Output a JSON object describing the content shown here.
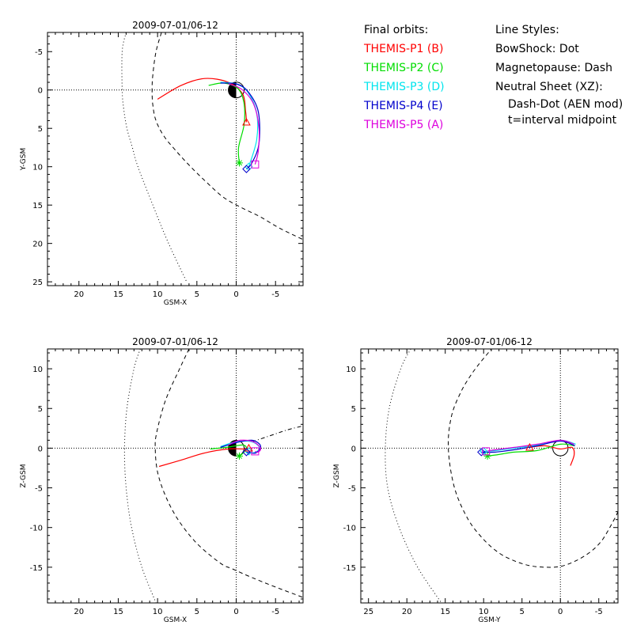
{
  "chart_data": {
    "type": "scatter",
    "panels": [
      {
        "id": "xy",
        "title": "2009-07-01/06-12",
        "xlabel": "GSM-X",
        "ylabel": "Y-GSM",
        "xlim": [
          24,
          -8.5
        ],
        "ylim": [
          -7.5,
          25.5
        ],
        "y_reversed": true,
        "xticks": [
          20,
          15,
          10,
          5,
          0,
          -5
        ],
        "yticks": [
          -5,
          0,
          5,
          10,
          15,
          20,
          25
        ],
        "marker_series": [
          2,
          4,
          0,
          3,
          1
        ],
        "bowshock_label": "BowShock",
        "magnetopause_label": "Magnetopause",
        "bowshock": [
          [
            14.0,
            -7.5
          ],
          [
            14.5,
            -5
          ],
          [
            14.5,
            0
          ],
          [
            14.3,
            2.5
          ],
          [
            13.9,
            5
          ],
          [
            13.2,
            7.5
          ],
          [
            12.5,
            10
          ],
          [
            10.6,
            15
          ],
          [
            8.6,
            20
          ],
          [
            6.3,
            25
          ]
        ],
        "magnetopause": [
          [
            9.5,
            -7.5
          ],
          [
            10.2,
            -5
          ],
          [
            10.6,
            -2
          ],
          [
            10.7,
            0
          ],
          [
            10.6,
            2
          ],
          [
            10.2,
            4
          ],
          [
            9.2,
            6
          ],
          [
            7.6,
            8
          ],
          [
            5.8,
            10
          ],
          [
            3.8,
            12
          ],
          [
            1.6,
            14
          ],
          [
            -0.6,
            15.3
          ],
          [
            -3.0,
            16.5
          ],
          [
            -5.5,
            18.0
          ],
          [
            -8.5,
            19.5
          ]
        ]
      },
      {
        "id": "xz",
        "title": "2009-07-01/06-12",
        "xlabel": "GSM-X",
        "ylabel": "Z-GSM",
        "xlim": [
          24,
          -8.5
        ],
        "ylim": [
          -19.5,
          12.5
        ],
        "y_reversed": false,
        "xticks": [
          20,
          15,
          10,
          5,
          0,
          -5
        ],
        "yticks": [
          10,
          5,
          0,
          -5,
          -10,
          -15
        ],
        "marker_series": [
          2,
          4,
          0,
          3,
          1
        ],
        "bowshock_label": "BowShock",
        "magnetopause_label": "Magnetopause",
        "neutral_sheet_label": "Neutral Sheet",
        "bowshock": [
          [
            12.2,
            12.5
          ],
          [
            13.0,
            10
          ],
          [
            13.9,
            5
          ],
          [
            14.2,
            0
          ],
          [
            14.0,
            -5
          ],
          [
            13.3,
            -10
          ],
          [
            12.0,
            -15
          ],
          [
            10.2,
            -19.5
          ]
        ],
        "magnetopause": [
          [
            6.0,
            12.5
          ],
          [
            7.2,
            10
          ],
          [
            9.0,
            6
          ],
          [
            10.1,
            2
          ],
          [
            10.3,
            0
          ],
          [
            10.0,
            -3
          ],
          [
            9.0,
            -6
          ],
          [
            7.4,
            -9
          ],
          [
            5.0,
            -12
          ],
          [
            2.0,
            -14.5
          ],
          [
            0.5,
            -15.2
          ],
          [
            -2.0,
            -16.3
          ],
          [
            -5.0,
            -17.5
          ],
          [
            -8.5,
            -18.8
          ]
        ],
        "neutral_sheet": [
          [
            -2.0,
            0.8
          ],
          [
            -3.5,
            1.3
          ],
          [
            -5.0,
            1.8
          ],
          [
            -6.5,
            2.3
          ],
          [
            -8.5,
            2.8
          ]
        ]
      },
      {
        "id": "yz",
        "title": "2009-07-01/06-12",
        "xlabel": "GSM-Y",
        "ylabel": "Z-GSM",
        "xlim": [
          26,
          -7.5
        ],
        "ylim": [
          -19.5,
          12.5
        ],
        "y_reversed": false,
        "xticks": [
          25,
          20,
          15,
          10,
          5,
          0,
          -5
        ],
        "yticks": [
          10,
          5,
          0,
          -5,
          -10,
          -15
        ],
        "marker_series": [
          3,
          1,
          0,
          2,
          4
        ],
        "bowshock_label": "BowShock",
        "magnetopause_label": "Magnetopause",
        "bowshock": [
          [
            19.5,
            12.5
          ],
          [
            20.8,
            10
          ],
          [
            22.3,
            5
          ],
          [
            22.8,
            0
          ],
          [
            22.5,
            -5
          ],
          [
            21.0,
            -10
          ],
          [
            18.6,
            -15
          ],
          [
            15.5,
            -19.5
          ]
        ],
        "magnetopause": [
          [
            -7.5,
            -8.0
          ],
          [
            -7.0,
            -9
          ],
          [
            -5.5,
            -11.5
          ],
          [
            -4.0,
            -13.0
          ],
          [
            -2.0,
            -14.2
          ],
          [
            0,
            -14.9
          ],
          [
            2.0,
            -15.0
          ],
          [
            4.0,
            -14.8
          ],
          [
            6.0,
            -14.2
          ],
          [
            8.0,
            -13.2
          ],
          [
            10.0,
            -11.5
          ],
          [
            12.0,
            -9.0
          ],
          [
            13.8,
            -5.0
          ],
          [
            14.6,
            0
          ],
          [
            14.2,
            4.0
          ],
          [
            13.0,
            7.0
          ],
          [
            11.8,
            9.0
          ],
          [
            10.6,
            10.6
          ],
          [
            9.4,
            12.0
          ],
          [
            9.0,
            12.5
          ]
        ]
      }
    ],
    "series": [
      {
        "name": "THEMIS-P1 (B)",
        "color": "#ff0000",
        "marker": "triangle",
        "xy": [
          [
            10,
            1.2
          ],
          [
            7,
            -0.6
          ],
          [
            4,
            -1.5
          ],
          [
            1,
            -1.0
          ],
          [
            -0.8,
            0.5
          ],
          [
            -1.2,
            2.8
          ],
          [
            -1.3,
            4.2
          ]
        ],
        "xz": [
          [
            9.8,
            -2.3
          ],
          [
            7,
            -1.5
          ],
          [
            4,
            -0.6
          ],
          [
            1,
            -0.1
          ],
          [
            -1,
            -0.1
          ],
          [
            -1.6,
            0.0
          ]
        ],
        "yz": [
          [
            -1.3,
            -2.2
          ],
          [
            -1.8,
            -0.8
          ],
          [
            -1.5,
            0.1
          ],
          [
            0,
            -0.1
          ],
          [
            2,
            0.3
          ],
          [
            4,
            0.1
          ]
        ]
      },
      {
        "name": "THEMIS-P2 (C)",
        "color": "#00dd00",
        "marker": "asterisk",
        "xy": [
          [
            3.5,
            -0.6
          ],
          [
            1.5,
            -0.9
          ],
          [
            -0.3,
            -0.1
          ],
          [
            -1.0,
            1.8
          ],
          [
            -1.0,
            4.5
          ],
          [
            -0.3,
            7.5
          ],
          [
            -0.4,
            9.5
          ]
        ],
        "xz": [
          [
            3.3,
            -0.1
          ],
          [
            1.2,
            0.1
          ],
          [
            -0.8,
            0.4
          ],
          [
            -1.3,
            0.0
          ],
          [
            -0.9,
            -0.6
          ],
          [
            -0.4,
            -1.0
          ]
        ],
        "yz": [
          [
            -1.8,
            0.3
          ],
          [
            0,
            0.5
          ],
          [
            3,
            -0.3
          ],
          [
            6,
            -0.5
          ],
          [
            8,
            -0.8
          ],
          [
            9.5,
            -1.0
          ]
        ]
      },
      {
        "name": "THEMIS-P3 (D)",
        "color": "#00e5ee",
        "marker": "diamond",
        "xy": [
          [
            2,
            -1.0
          ],
          [
            0,
            -0.8
          ],
          [
            -1.5,
            0.3
          ],
          [
            -2.6,
            3.0
          ],
          [
            -2.6,
            6.5
          ],
          [
            -1.6,
            10.0
          ]
        ],
        "xz": [
          [
            2,
            0.2
          ],
          [
            0,
            0.8
          ],
          [
            -2,
            0.8
          ],
          [
            -3.0,
            0.0
          ],
          [
            -2.2,
            -0.6
          ],
          [
            -1.6,
            -0.4
          ]
        ],
        "yz": [
          [
            -2.0,
            0.5
          ],
          [
            0,
            1.0
          ],
          [
            3,
            0.4
          ],
          [
            6,
            0.0
          ],
          [
            8.5,
            -0.3
          ],
          [
            10.0,
            -0.4
          ]
        ]
      },
      {
        "name": "THEMIS-P4 (E)",
        "color": "#0000cc",
        "marker": "diamond",
        "xy": [
          [
            2,
            -0.9
          ],
          [
            0,
            -0.8
          ],
          [
            -1.5,
            0.2
          ],
          [
            -2.8,
            2.8
          ],
          [
            -2.9,
            7.0
          ],
          [
            -2.0,
            9.5
          ],
          [
            -1.3,
            10.3
          ]
        ],
        "xz": [
          [
            2,
            0.1
          ],
          [
            0,
            0.7
          ],
          [
            -2,
            1.0
          ],
          [
            -3.1,
            0.3
          ],
          [
            -2.5,
            -0.6
          ],
          [
            -1.3,
            -0.5
          ]
        ],
        "yz": [
          [
            -1.9,
            0.3
          ],
          [
            0,
            0.9
          ],
          [
            3,
            0.3
          ],
          [
            6,
            -0.2
          ],
          [
            8.5,
            -0.5
          ],
          [
            10.3,
            -0.5
          ]
        ]
      },
      {
        "name": "THEMIS-P5 (A)",
        "color": "#dd00dd",
        "marker": "square",
        "xy": [
          [
            1,
            -0.8
          ],
          [
            -0.7,
            -0.1
          ],
          [
            -2.2,
            1.8
          ],
          [
            -2.9,
            5.0
          ],
          [
            -2.8,
            8.0
          ],
          [
            -2.4,
            9.7
          ]
        ],
        "xz": [
          [
            1,
            0.4
          ],
          [
            -0.5,
            1.0
          ],
          [
            -2.2,
            0.8
          ],
          [
            -3.1,
            0.0
          ],
          [
            -2.8,
            -0.5
          ],
          [
            -2.4,
            -0.4
          ]
        ],
        "yz": [
          [
            -1.8,
            0.5
          ],
          [
            0,
            1.0
          ],
          [
            3,
            0.5
          ],
          [
            6,
            0.1
          ],
          [
            8.5,
            -0.2
          ],
          [
            9.7,
            -0.4
          ]
        ]
      }
    ],
    "legend": {
      "orbits_title": "Final orbits:",
      "styles_title": "Line Styles:",
      "styles": [
        "BowShock: Dot",
        "Magnetopause: Dash",
        "Neutral Sheet (XZ):",
        "Dash-Dot (AEN mod)",
        "t=interval midpoint"
      ]
    }
  }
}
